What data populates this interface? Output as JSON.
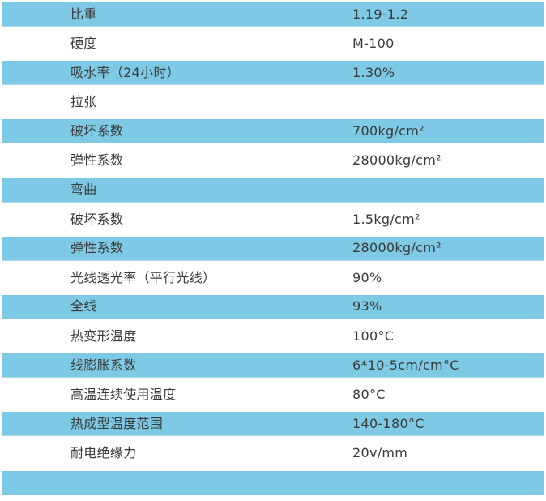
{
  "table": {
    "colors": {
      "row_highlight": "#7ec9e6",
      "text": "#3a3a3a"
    },
    "rows": [
      {
        "label": "比重",
        "value": "1.19-1.2",
        "variant": "blue"
      },
      {
        "label": "硬度",
        "value": "M-100",
        "variant": "white"
      },
      {
        "label": "吸水率（24小时）",
        "value": "1.30%",
        "variant": "blue"
      },
      {
        "label": "拉张",
        "value": "",
        "variant": "white"
      },
      {
        "label": "破坏系数",
        "value": "700kg/cm²",
        "variant": "blue"
      },
      {
        "label": "弹性系数",
        "value": "28000kg/cm²",
        "variant": "white"
      },
      {
        "label": "弯曲",
        "value": "",
        "variant": "blue"
      },
      {
        "label": "破坏系数",
        "value": "1.5kg/cm²",
        "variant": "white"
      },
      {
        "label": "弹性系数",
        "value": "28000kg/cm²",
        "variant": "blue"
      },
      {
        "label": "光线透光率（平行光线）",
        "value": "90%",
        "variant": "white"
      },
      {
        "label": "全线",
        "value": "93%",
        "variant": "blue"
      },
      {
        "label": "热变形温度",
        "value": "100°C",
        "variant": "white"
      },
      {
        "label": "线膨胀系数",
        "value": "6*10-5cm/cm°C",
        "variant": "blue"
      },
      {
        "label": "高温连续使用温度",
        "value": "80°C",
        "variant": "white"
      },
      {
        "label": "热成型温度范围",
        "value": "140-180°C",
        "variant": "blue"
      },
      {
        "label": "耐电绝缘力",
        "value": "20v/mm",
        "variant": "white"
      },
      {
        "label": "",
        "value": "",
        "variant": "blue"
      }
    ]
  }
}
